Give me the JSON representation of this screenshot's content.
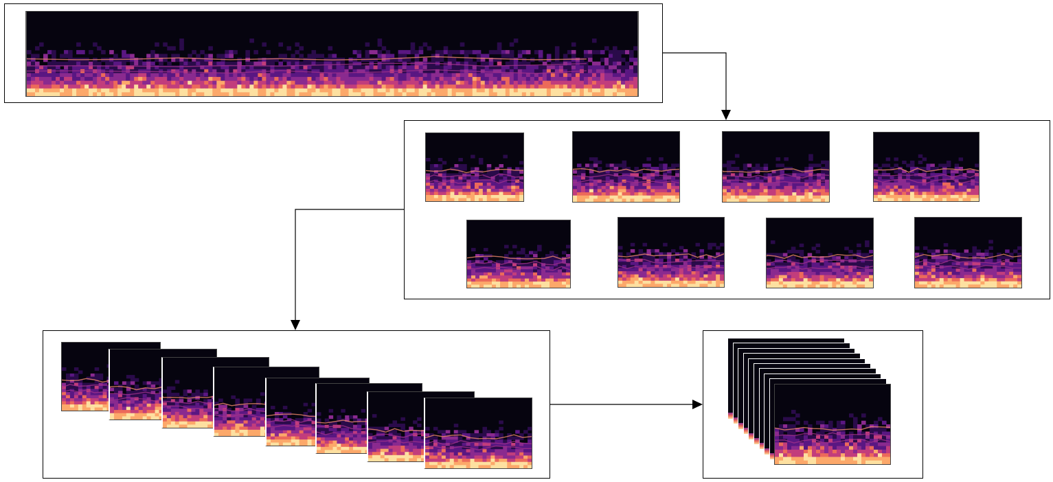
{
  "diagram": {
    "stages": [
      {
        "id": "full-spectrogram",
        "segments": 1
      },
      {
        "id": "segmented-spectrograms",
        "segments": 8
      },
      {
        "id": "overlapping-spectrogram-sequence",
        "segments": 8
      },
      {
        "id": "stacked-spectrogram-batch",
        "segments": 10
      }
    ],
    "colormap": [
      "#06040f",
      "#2a0b4a",
      "#5a1782",
      "#8a2a8f",
      "#c23d7c",
      "#ec6a5a",
      "#fca86a",
      "#fde0a0"
    ]
  }
}
